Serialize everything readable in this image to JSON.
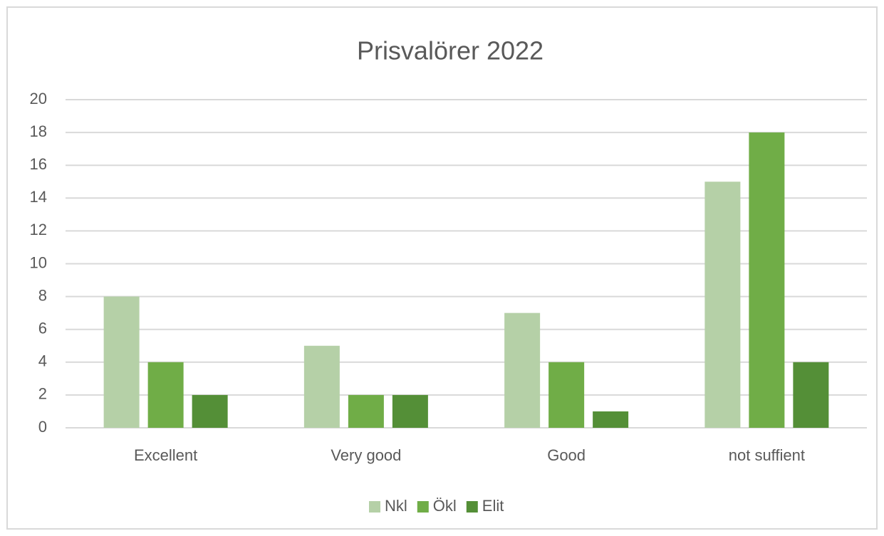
{
  "chart_data": {
    "type": "bar",
    "title": "Prisvalörer 2022",
    "categories": [
      "Excellent",
      "Very good",
      "Good",
      "not suffient"
    ],
    "series": [
      {
        "name": "Nkl",
        "color": "#b5d0a7",
        "values": [
          8,
          5,
          7,
          15
        ]
      },
      {
        "name": "Ökl",
        "color": "#70ad47",
        "values": [
          4,
          2,
          4,
          18
        ]
      },
      {
        "name": "Elit",
        "color": "#548f37",
        "values": [
          2,
          2,
          1,
          4
        ]
      }
    ],
    "ylim": [
      0,
      20
    ],
    "yticks": [
      0,
      2,
      4,
      6,
      8,
      10,
      12,
      14,
      16,
      18,
      20
    ],
    "grid": true,
    "legend": "bottom"
  }
}
